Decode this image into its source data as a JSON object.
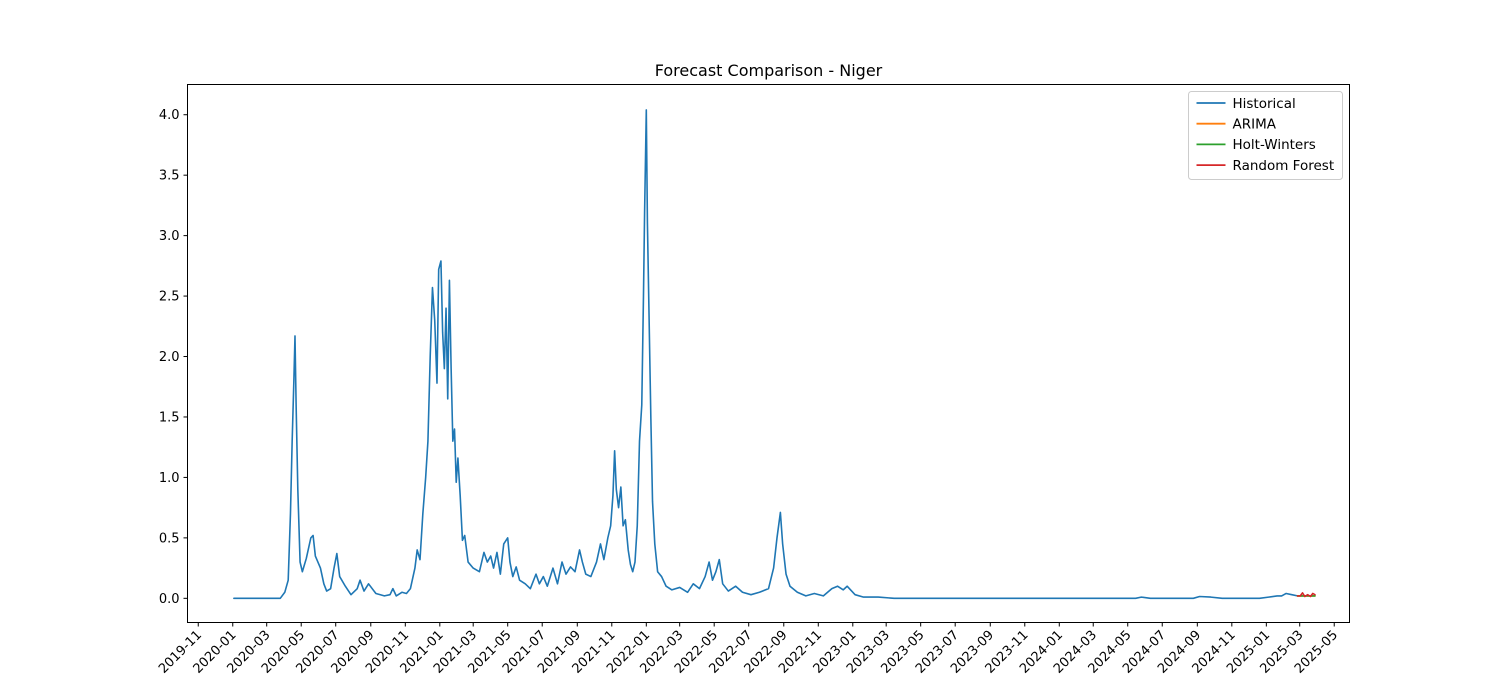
{
  "chart_data": {
    "type": "line",
    "title": "Forecast Comparison - Niger",
    "xlabel": "",
    "ylabel": "",
    "xlim": [
      "2019-10-13",
      "2025-05-28"
    ],
    "ylim": [
      -0.2,
      4.25
    ],
    "yticks": [
      0.0,
      0.5,
      1.0,
      1.5,
      2.0,
      2.5,
      3.0,
      3.5,
      4.0
    ],
    "ytick_labels": [
      "0.0",
      "0.5",
      "1.0",
      "1.5",
      "2.0",
      "2.5",
      "3.0",
      "3.5",
      "4.0"
    ],
    "xticks": [
      "2019-11-01",
      "2020-01-01",
      "2020-03-01",
      "2020-05-01",
      "2020-07-01",
      "2020-09-01",
      "2020-11-01",
      "2021-01-01",
      "2021-03-01",
      "2021-05-01",
      "2021-07-01",
      "2021-09-01",
      "2021-11-01",
      "2022-01-01",
      "2022-03-01",
      "2022-05-01",
      "2022-07-01",
      "2022-09-01",
      "2022-11-01",
      "2023-01-01",
      "2023-03-01",
      "2023-05-01",
      "2023-07-01",
      "2023-09-01",
      "2023-11-01",
      "2024-01-01",
      "2024-03-01",
      "2024-05-01",
      "2024-07-01",
      "2024-09-01",
      "2024-11-01",
      "2025-01-01",
      "2025-03-01",
      "2025-05-01"
    ],
    "xtick_labels": [
      "2019-11",
      "2020-01",
      "2020-03",
      "2020-05",
      "2020-07",
      "2020-09",
      "2020-11",
      "2021-01",
      "2021-03",
      "2021-05",
      "2021-07",
      "2021-09",
      "2021-11",
      "2022-01",
      "2022-03",
      "2022-05",
      "2022-07",
      "2022-09",
      "2022-11",
      "2023-01",
      "2023-03",
      "2023-05",
      "2023-07",
      "2023-09",
      "2023-11",
      "2024-01",
      "2024-03",
      "2024-05",
      "2024-07",
      "2024-09",
      "2024-11",
      "2025-01",
      "2025-03",
      "2025-05"
    ],
    "grid": false,
    "legend_position": "top-right",
    "series": [
      {
        "name": "Historical",
        "color": "#1f77b4",
        "points": [
          [
            "2020-01-03",
            0.0
          ],
          [
            "2020-03-25",
            0.0
          ],
          [
            "2020-04-02",
            0.05
          ],
          [
            "2020-04-08",
            0.15
          ],
          [
            "2020-04-12",
            0.7
          ],
          [
            "2020-04-15",
            1.3
          ],
          [
            "2020-04-18",
            1.8
          ],
          [
            "2020-04-20",
            2.17
          ],
          [
            "2020-04-22",
            1.6
          ],
          [
            "2020-04-25",
            0.9
          ],
          [
            "2020-04-29",
            0.3
          ],
          [
            "2020-05-03",
            0.22
          ],
          [
            "2020-05-10",
            0.33
          ],
          [
            "2020-05-18",
            0.5
          ],
          [
            "2020-05-22",
            0.52
          ],
          [
            "2020-05-26",
            0.35
          ],
          [
            "2020-06-04",
            0.25
          ],
          [
            "2020-06-10",
            0.12
          ],
          [
            "2020-06-15",
            0.06
          ],
          [
            "2020-06-22",
            0.08
          ],
          [
            "2020-06-28",
            0.25
          ],
          [
            "2020-07-03",
            0.37
          ],
          [
            "2020-07-08",
            0.18
          ],
          [
            "2020-07-18",
            0.1
          ],
          [
            "2020-07-28",
            0.03
          ],
          [
            "2020-08-08",
            0.08
          ],
          [
            "2020-08-13",
            0.15
          ],
          [
            "2020-08-20",
            0.06
          ],
          [
            "2020-08-28",
            0.12
          ],
          [
            "2020-09-10",
            0.04
          ],
          [
            "2020-09-25",
            0.02
          ],
          [
            "2020-10-05",
            0.03
          ],
          [
            "2020-10-10",
            0.08
          ],
          [
            "2020-10-16",
            0.02
          ],
          [
            "2020-10-26",
            0.05
          ],
          [
            "2020-11-03",
            0.04
          ],
          [
            "2020-11-10",
            0.08
          ],
          [
            "2020-11-18",
            0.25
          ],
          [
            "2020-11-22",
            0.4
          ],
          [
            "2020-11-27",
            0.32
          ],
          [
            "2020-12-02",
            0.7
          ],
          [
            "2020-12-07",
            1.0
          ],
          [
            "2020-12-11",
            1.3
          ],
          [
            "2020-12-15",
            2.0
          ],
          [
            "2020-12-19",
            2.57
          ],
          [
            "2020-12-23",
            2.3
          ],
          [
            "2020-12-27",
            1.78
          ],
          [
            "2020-12-30",
            2.72
          ],
          [
            "2021-01-03",
            2.79
          ],
          [
            "2021-01-06",
            2.2
          ],
          [
            "2021-01-09",
            1.9
          ],
          [
            "2021-01-12",
            2.4
          ],
          [
            "2021-01-15",
            1.65
          ],
          [
            "2021-01-18",
            2.63
          ],
          [
            "2021-01-21",
            1.9
          ],
          [
            "2021-01-24",
            1.3
          ],
          [
            "2021-01-27",
            1.4
          ],
          [
            "2021-01-30",
            0.96
          ],
          [
            "2021-02-02",
            1.16
          ],
          [
            "2021-02-06",
            0.85
          ],
          [
            "2021-02-10",
            0.48
          ],
          [
            "2021-02-14",
            0.52
          ],
          [
            "2021-02-20",
            0.3
          ],
          [
            "2021-03-01",
            0.25
          ],
          [
            "2021-03-12",
            0.22
          ],
          [
            "2021-03-20",
            0.38
          ],
          [
            "2021-03-26",
            0.3
          ],
          [
            "2021-04-01",
            0.35
          ],
          [
            "2021-04-06",
            0.25
          ],
          [
            "2021-04-12",
            0.38
          ],
          [
            "2021-04-18",
            0.2
          ],
          [
            "2021-04-24",
            0.45
          ],
          [
            "2021-05-01",
            0.5
          ],
          [
            "2021-05-05",
            0.3
          ],
          [
            "2021-05-10",
            0.18
          ],
          [
            "2021-05-16",
            0.26
          ],
          [
            "2021-05-22",
            0.15
          ],
          [
            "2021-06-01",
            0.12
          ],
          [
            "2021-06-10",
            0.08
          ],
          [
            "2021-06-20",
            0.2
          ],
          [
            "2021-06-26",
            0.12
          ],
          [
            "2021-07-03",
            0.18
          ],
          [
            "2021-07-10",
            0.1
          ],
          [
            "2021-07-20",
            0.25
          ],
          [
            "2021-07-28",
            0.12
          ],
          [
            "2021-08-05",
            0.3
          ],
          [
            "2021-08-12",
            0.2
          ],
          [
            "2021-08-20",
            0.26
          ],
          [
            "2021-08-28",
            0.22
          ],
          [
            "2021-09-05",
            0.4
          ],
          [
            "2021-09-10",
            0.3
          ],
          [
            "2021-09-16",
            0.2
          ],
          [
            "2021-09-25",
            0.18
          ],
          [
            "2021-10-05",
            0.3
          ],
          [
            "2021-10-12",
            0.45
          ],
          [
            "2021-10-18",
            0.32
          ],
          [
            "2021-10-25",
            0.5
          ],
          [
            "2021-10-30",
            0.6
          ],
          [
            "2021-11-03",
            0.85
          ],
          [
            "2021-11-06",
            1.22
          ],
          [
            "2021-11-09",
            0.9
          ],
          [
            "2021-11-13",
            0.75
          ],
          [
            "2021-11-17",
            0.92
          ],
          [
            "2021-11-21",
            0.6
          ],
          [
            "2021-11-25",
            0.65
          ],
          [
            "2021-11-30",
            0.4
          ],
          [
            "2021-12-04",
            0.28
          ],
          [
            "2021-12-08",
            0.22
          ],
          [
            "2021-12-12",
            0.3
          ],
          [
            "2021-12-16",
            0.6
          ],
          [
            "2021-12-20",
            1.3
          ],
          [
            "2021-12-24",
            1.6
          ],
          [
            "2021-12-27",
            2.5
          ],
          [
            "2021-12-29",
            3.2
          ],
          [
            "2022-01-01",
            4.04
          ],
          [
            "2022-01-03",
            3.1
          ],
          [
            "2022-01-06",
            2.3
          ],
          [
            "2022-01-09",
            1.5
          ],
          [
            "2022-01-12",
            0.8
          ],
          [
            "2022-01-16",
            0.45
          ],
          [
            "2022-01-21",
            0.22
          ],
          [
            "2022-01-28",
            0.18
          ],
          [
            "2022-02-05",
            0.1
          ],
          [
            "2022-02-15",
            0.07
          ],
          [
            "2022-03-01",
            0.09
          ],
          [
            "2022-03-15",
            0.05
          ],
          [
            "2022-03-25",
            0.12
          ],
          [
            "2022-04-05",
            0.08
          ],
          [
            "2022-04-15",
            0.18
          ],
          [
            "2022-04-22",
            0.3
          ],
          [
            "2022-04-28",
            0.15
          ],
          [
            "2022-05-04",
            0.22
          ],
          [
            "2022-05-10",
            0.32
          ],
          [
            "2022-05-16",
            0.12
          ],
          [
            "2022-05-26",
            0.06
          ],
          [
            "2022-06-08",
            0.1
          ],
          [
            "2022-06-20",
            0.05
          ],
          [
            "2022-07-05",
            0.03
          ],
          [
            "2022-07-20",
            0.05
          ],
          [
            "2022-08-05",
            0.08
          ],
          [
            "2022-08-14",
            0.25
          ],
          [
            "2022-08-20",
            0.5
          ],
          [
            "2022-08-26",
            0.71
          ],
          [
            "2022-08-30",
            0.45
          ],
          [
            "2022-09-05",
            0.2
          ],
          [
            "2022-09-12",
            0.1
          ],
          [
            "2022-09-25",
            0.05
          ],
          [
            "2022-10-10",
            0.02
          ],
          [
            "2022-10-25",
            0.04
          ],
          [
            "2022-11-10",
            0.02
          ],
          [
            "2022-11-25",
            0.08
          ],
          [
            "2022-12-05",
            0.1
          ],
          [
            "2022-12-15",
            0.07
          ],
          [
            "2022-12-22",
            0.1
          ],
          [
            "2023-01-05",
            0.03
          ],
          [
            "2023-01-20",
            0.01
          ],
          [
            "2023-02-15",
            0.01
          ],
          [
            "2023-03-15",
            0.0
          ],
          [
            "2024-05-15",
            0.0
          ],
          [
            "2024-05-25",
            0.01
          ],
          [
            "2024-06-10",
            0.0
          ],
          [
            "2024-08-25",
            0.0
          ],
          [
            "2024-09-05",
            0.015
          ],
          [
            "2024-09-25",
            0.01
          ],
          [
            "2024-10-15",
            0.0
          ],
          [
            "2024-12-20",
            0.0
          ],
          [
            "2025-01-05",
            0.01
          ],
          [
            "2025-01-20",
            0.02
          ],
          [
            "2025-01-28",
            0.02
          ],
          [
            "2025-02-05",
            0.04
          ],
          [
            "2025-02-15",
            0.03
          ],
          [
            "2025-02-25",
            0.02
          ]
        ]
      },
      {
        "name": "ARIMA",
        "color": "#ff7f0e",
        "points": [
          [
            "2025-02-25",
            0.02
          ],
          [
            "2025-03-05",
            0.02
          ],
          [
            "2025-03-15",
            0.02
          ],
          [
            "2025-03-28",
            0.02
          ]
        ]
      },
      {
        "name": "Holt-Winters",
        "color": "#2ca02c",
        "points": [
          [
            "2025-02-25",
            0.02
          ],
          [
            "2025-03-05",
            0.02
          ],
          [
            "2025-03-15",
            0.02
          ],
          [
            "2025-03-28",
            0.02
          ]
        ]
      },
      {
        "name": "Random Forest",
        "color": "#d62728",
        "points": [
          [
            "2025-02-25",
            0.02
          ],
          [
            "2025-03-02",
            0.02
          ],
          [
            "2025-03-06",
            0.045
          ],
          [
            "2025-03-10",
            0.015
          ],
          [
            "2025-03-15",
            0.03
          ],
          [
            "2025-03-20",
            0.015
          ],
          [
            "2025-03-24",
            0.04
          ],
          [
            "2025-03-28",
            0.03
          ]
        ]
      }
    ]
  }
}
